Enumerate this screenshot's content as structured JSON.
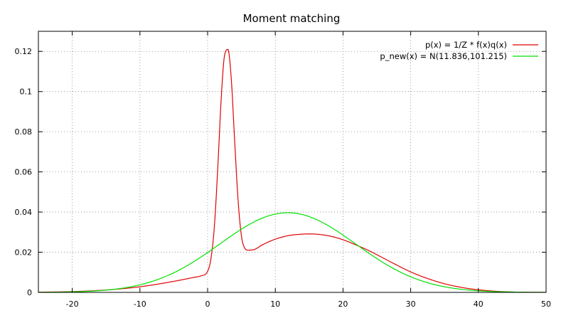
{
  "chart_data": {
    "type": "line",
    "title": "Moment matching",
    "xlabel": "",
    "ylabel": "",
    "xlim": [
      -25,
      50
    ],
    "ylim": [
      0,
      0.13
    ],
    "x_ticks": [
      -20,
      -10,
      0,
      10,
      20,
      30,
      40,
      50
    ],
    "x_tick_labels": [
      "-20",
      "-10",
      "0",
      "10",
      "20",
      "30",
      "40",
      "50"
    ],
    "y_ticks": [
      0,
      0.02,
      0.04,
      0.06,
      0.08,
      0.1,
      0.12
    ],
    "y_tick_labels": [
      "0",
      "0.02",
      "0.04",
      "0.06",
      "0.08",
      "0.1",
      "0.12"
    ],
    "grid": true,
    "legend_position": "top-right",
    "series": [
      {
        "name": "p(x) = 1/Z * f(x)q(x)",
        "color": "#e00000",
        "x": [
          -25,
          -20,
          -15,
          -10,
          -5,
          -2,
          -1,
          0,
          0.5,
          1,
          1.5,
          2,
          2.5,
          3,
          3.5,
          4,
          4.5,
          5,
          5.5,
          6,
          7,
          8,
          10,
          12,
          14,
          15,
          16,
          18,
          20,
          22,
          24,
          26,
          28,
          30,
          32,
          35,
          38,
          40,
          42,
          45,
          50
        ],
        "y": [
          0.0001,
          0.0004,
          0.0012,
          0.0028,
          0.0055,
          0.0075,
          0.0082,
          0.0105,
          0.017,
          0.033,
          0.062,
          0.096,
          0.118,
          0.121,
          0.106,
          0.075,
          0.046,
          0.028,
          0.022,
          0.021,
          0.0215,
          0.0235,
          0.0265,
          0.0283,
          0.029,
          0.0291,
          0.029,
          0.0281,
          0.0262,
          0.0235,
          0.0205,
          0.017,
          0.0135,
          0.0102,
          0.0075,
          0.0043,
          0.0022,
          0.0013,
          0.0007,
          0.0002,
          2e-05
        ]
      },
      {
        "name": "p_new(x) = N(11.836,101.215)",
        "color": "#00e000",
        "mean": 11.836,
        "variance": 101.215
      }
    ]
  }
}
